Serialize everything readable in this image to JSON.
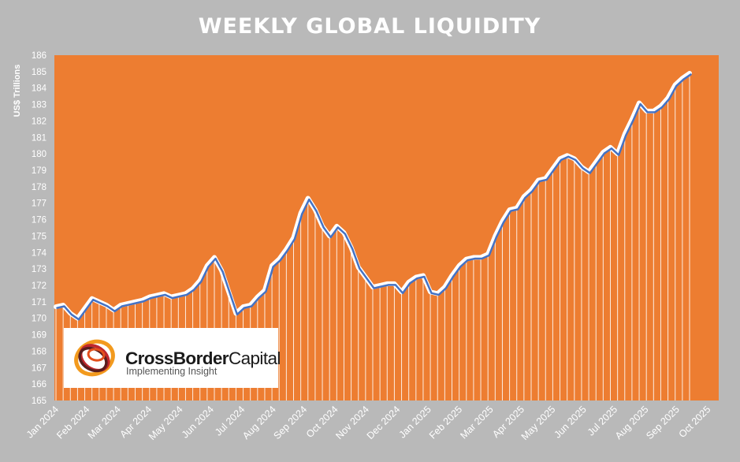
{
  "chart_data": {
    "type": "area",
    "title": "WEEKLY GLOBAL LIQUIDITY",
    "xlabel": "",
    "ylabel": "US$ Trillions",
    "ylim": [
      165,
      186
    ],
    "yticks": [
      165,
      166,
      167,
      168,
      169,
      170,
      171,
      172,
      173,
      174,
      175,
      176,
      177,
      178,
      179,
      180,
      181,
      182,
      183,
      184,
      185,
      186
    ],
    "xticks": [
      "Jan 2024",
      "Feb 2024",
      "Mar 2024",
      "Apr 2024",
      "May 2024",
      "Jun 2024",
      "Jul 2024",
      "Aug 2024",
      "Sep 2024",
      "Oct 2024",
      "Nov 2024",
      "Dec 2024",
      "Jan 2025",
      "Feb 2025",
      "Mar 2025",
      "Apr 2025",
      "May 2025",
      "Jun 2025",
      "Jul 2025",
      "Aug 2025",
      "Sep 2025",
      "Oct 2025"
    ],
    "grid": false,
    "colors": {
      "background": "#b9b9b9",
      "plot": "#ed7d31",
      "line": "#4472c4",
      "line_edge": "#ffffff",
      "fill_lines": "#ffffff"
    },
    "series": [
      {
        "values": [
          170.7,
          170.8,
          170.3,
          170.0,
          170.6,
          171.2,
          171.0,
          170.8,
          170.5,
          170.8,
          170.9,
          171.0,
          171.1,
          171.3,
          171.4,
          171.5,
          171.3,
          171.4,
          171.5,
          171.8,
          172.3,
          173.2,
          173.7,
          172.9,
          171.6,
          170.3,
          170.7,
          170.8,
          171.3,
          171.7,
          173.2,
          173.6,
          174.2,
          174.9,
          176.4,
          177.3,
          176.6,
          175.6,
          175.0,
          175.6,
          175.2,
          174.3,
          173.1,
          172.5,
          171.9,
          172.0,
          172.1,
          172.1,
          171.6,
          172.2,
          172.5,
          172.6,
          171.6,
          171.5,
          171.9,
          172.6,
          173.2,
          173.6,
          173.7,
          173.7,
          173.9,
          175.0,
          175.9,
          176.6,
          176.7,
          177.4,
          177.8,
          178.4,
          178.5,
          179.1,
          179.7,
          179.9,
          179.7,
          179.2,
          178.9,
          179.5,
          180.1,
          180.4,
          180.0,
          181.2,
          182.1,
          183.1,
          182.6,
          182.6,
          182.9,
          183.4,
          184.2,
          184.6,
          184.9
        ]
      }
    ],
    "x_start_index_of_ticks": 0,
    "points_per_tick": 4.35
  },
  "logo": {
    "company": "CrossBorderCapital",
    "company_part1": "CrossBorder",
    "company_part2": "Capital",
    "tagline": "Implementing Insight"
  }
}
